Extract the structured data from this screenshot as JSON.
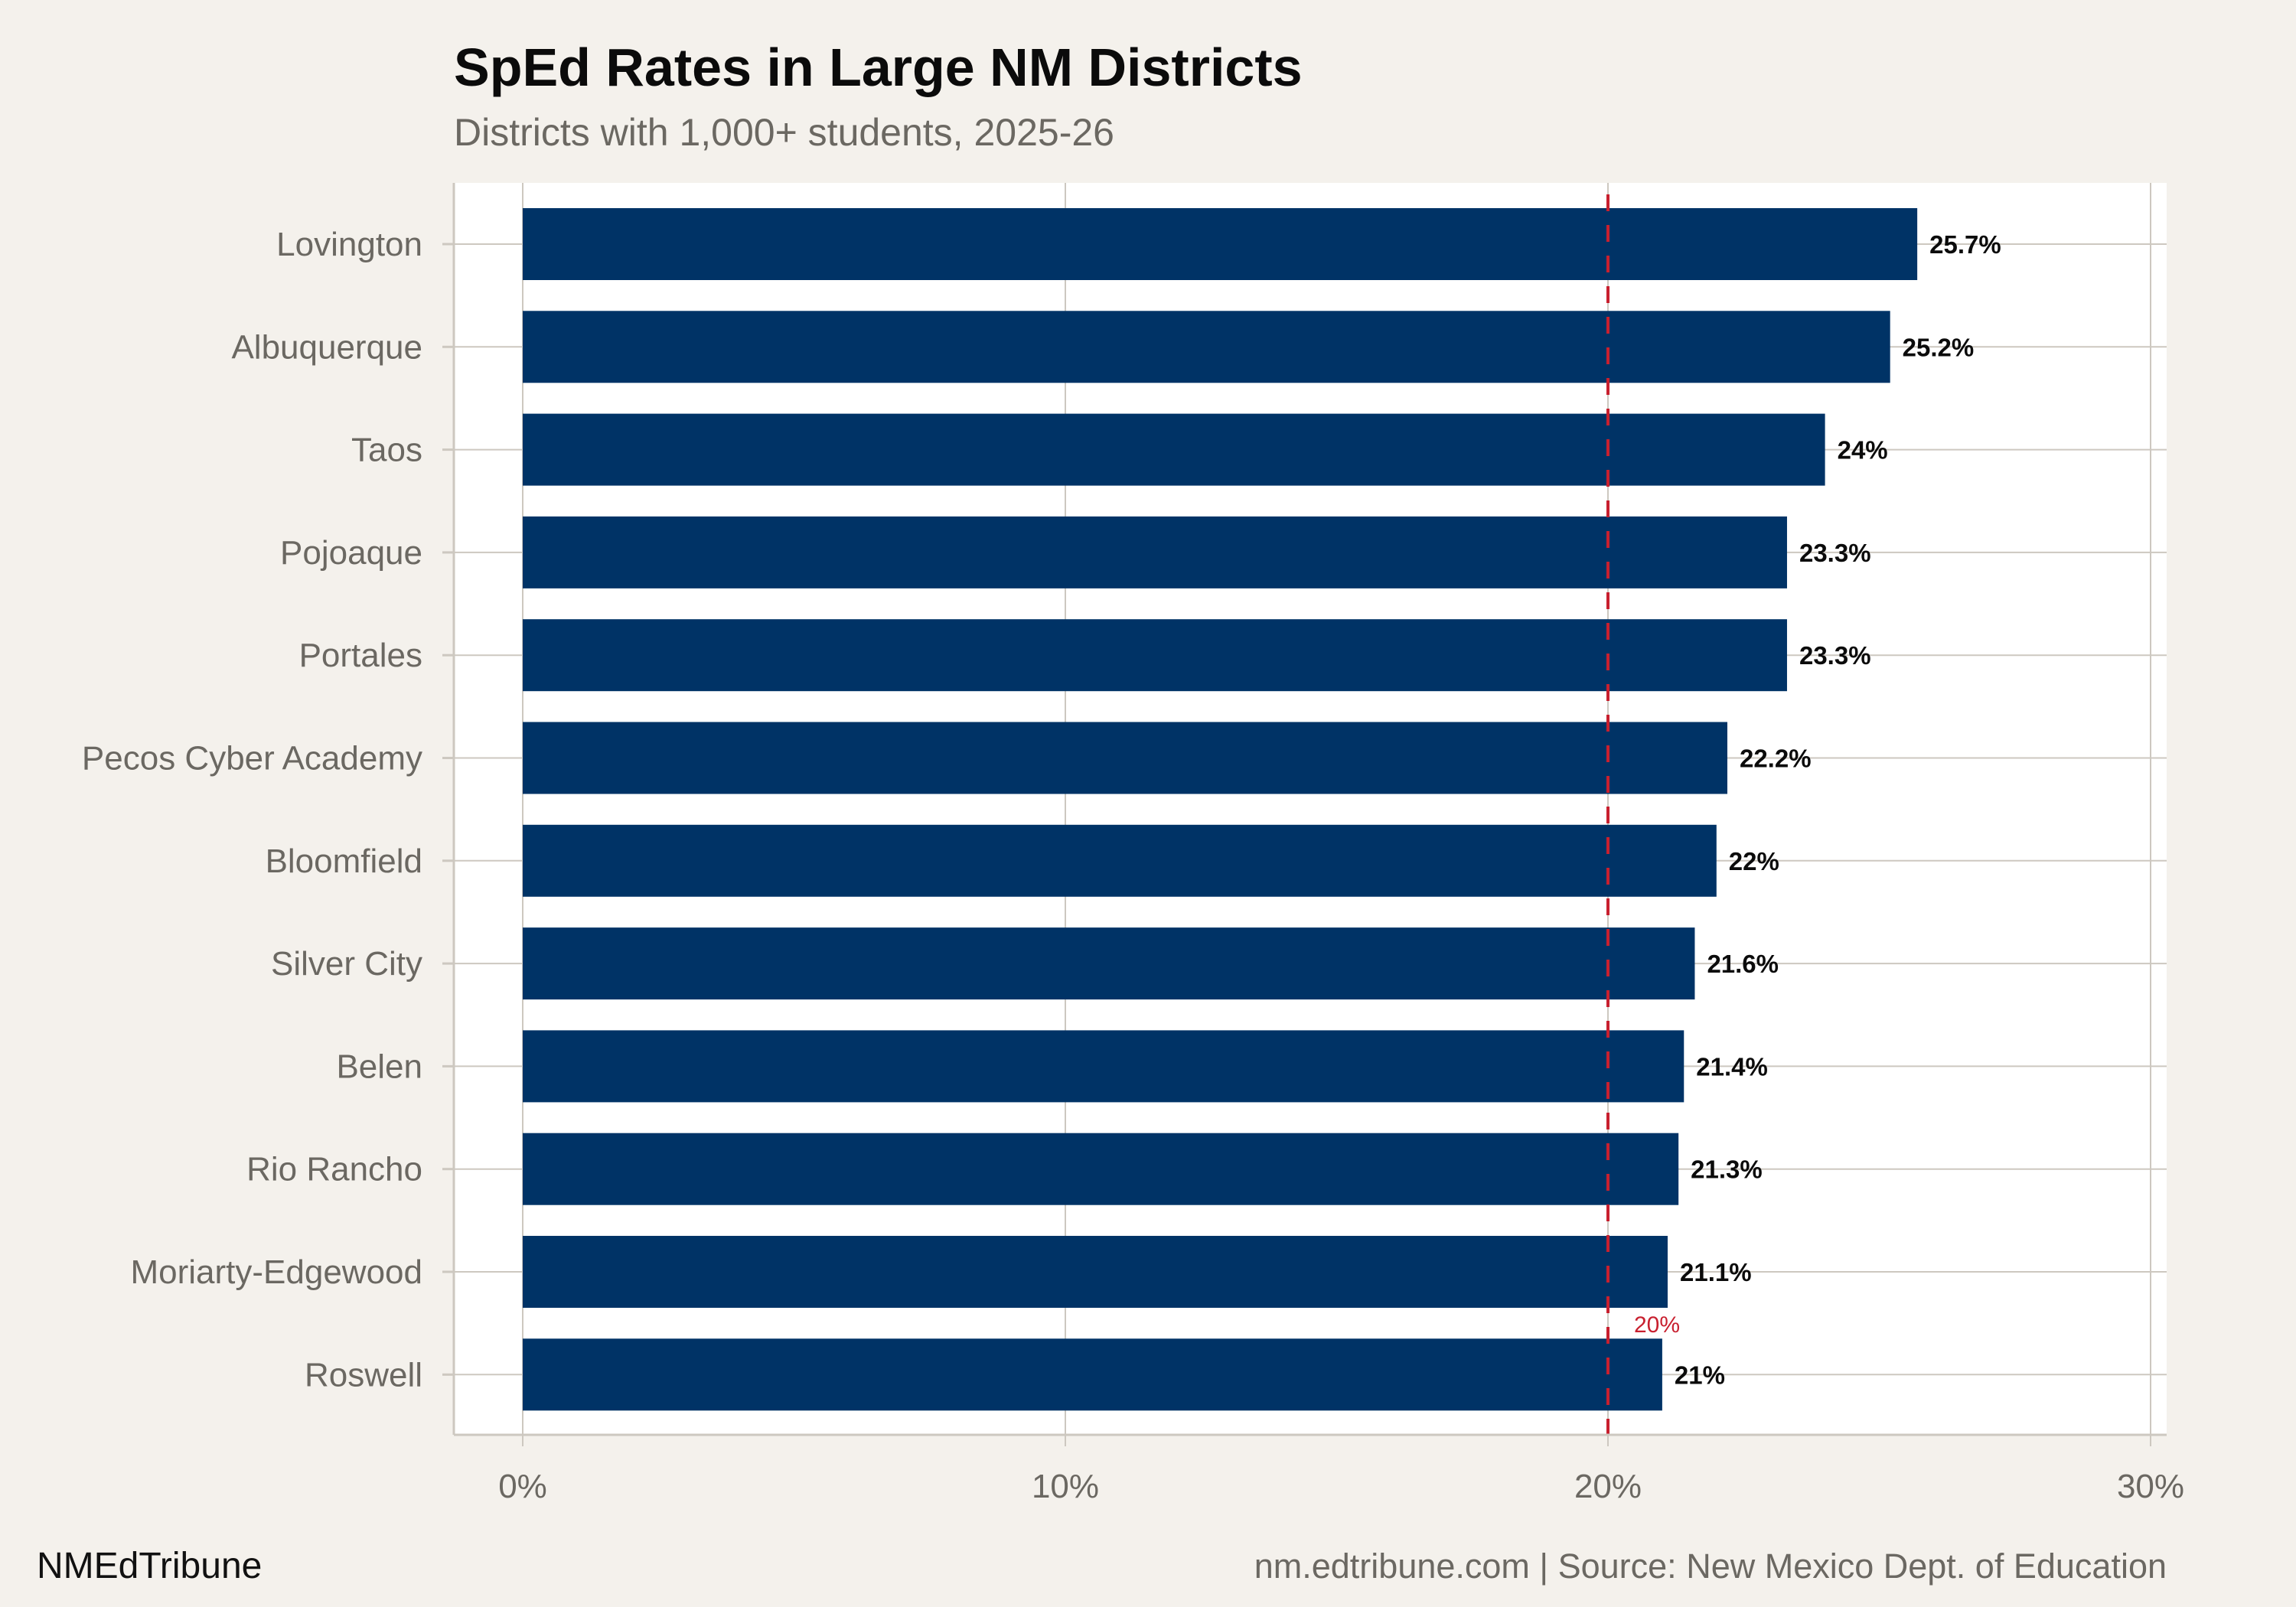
{
  "chart_data": {
    "type": "bar",
    "orientation": "horizontal",
    "title": "SpEd Rates in Large NM Districts",
    "subtitle": "Districts with 1,000+ students, 2025-26",
    "categories": [
      "Lovington",
      "Albuquerque",
      "Taos",
      "Pojoaque",
      "Portales",
      "Pecos Cyber Academy",
      "Bloomfield",
      "Silver City",
      "Belen",
      "Rio Rancho",
      "Moriarty-Edgewood",
      "Roswell"
    ],
    "values": [
      25.7,
      25.2,
      24.0,
      23.3,
      23.3,
      22.2,
      22.0,
      21.6,
      21.4,
      21.3,
      21.1,
      21.0
    ],
    "value_labels": [
      "25.7%",
      "25.2%",
      "24%",
      "23.3%",
      "23.3%",
      "22.2%",
      "22%",
      "21.6%",
      "21.4%",
      "21.3%",
      "21.1%",
      "21%"
    ],
    "xlim": [
      0,
      30
    ],
    "x_ticks": [
      0,
      10,
      20,
      30
    ],
    "x_tick_labels": [
      "0%",
      "10%",
      "20%",
      "30%"
    ],
    "xlabel": "",
    "ylabel": "",
    "grid": true,
    "reference_line": {
      "value": 20,
      "label": "20%",
      "style": "dashed",
      "color": "#c8202f"
    },
    "bar_color": "#003366"
  },
  "footer": {
    "brand": "NMEdTribune",
    "caption": "nm.edtribune.com | Source: New Mexico Dept. of Education"
  },
  "colors": {
    "background": "#f4f1ec",
    "panel": "#ffffff",
    "grid": "#cdc8c0",
    "bar": "#003366",
    "reference": "#c8202f"
  }
}
